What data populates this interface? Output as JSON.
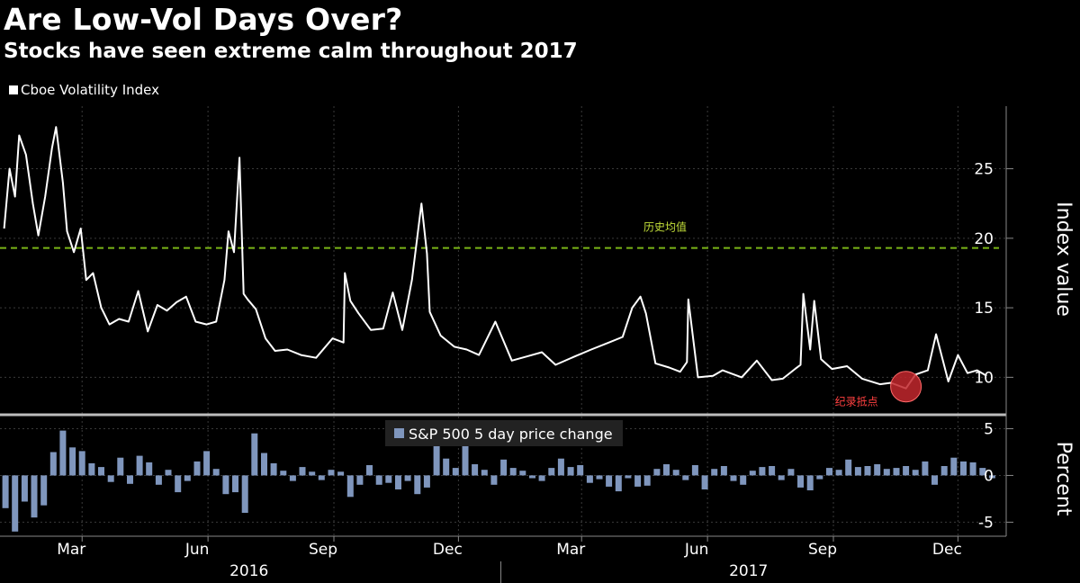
{
  "title": "Are Low-Vol Days Over?",
  "subtitle": "Stocks have seen extreme calm throughout 2017",
  "colors": {
    "background": "#000000",
    "vix_line": "#ffffff",
    "mean_line": "#7ab317",
    "bars": "#7f96bd",
    "record_low": "#e02626",
    "grid": "#444444"
  },
  "chart_data": [
    {
      "type": "line",
      "legend": "Cboe Volatility Index",
      "ylabel": "Index value",
      "ylim": [
        7.5,
        29.5
      ],
      "yticks": [
        10,
        15,
        20,
        25
      ],
      "historical_mean": 19.3,
      "annotations": {
        "mean_label": "历史均值",
        "record_low_label": "纪录抵点",
        "record_low": {
          "date": "2017-10-24",
          "value": 9.2
        }
      },
      "series": [
        {
          "name": "Cboe Volatility Index",
          "x": [
            "2016-01-04",
            "2016-01-08",
            "2016-01-12",
            "2016-01-15",
            "2016-01-20",
            "2016-01-25",
            "2016-01-29",
            "2016-02-03",
            "2016-02-08",
            "2016-02-11",
            "2016-02-16",
            "2016-02-19",
            "2016-02-24",
            "2016-02-29",
            "2016-03-04",
            "2016-03-09",
            "2016-03-15",
            "2016-03-21",
            "2016-03-28",
            "2016-04-04",
            "2016-04-11",
            "2016-04-18",
            "2016-04-25",
            "2016-05-02",
            "2016-05-09",
            "2016-05-16",
            "2016-05-23",
            "2016-05-31",
            "2016-06-07",
            "2016-06-13",
            "2016-06-16",
            "2016-06-20",
            "2016-06-24",
            "2016-06-27",
            "2016-06-30",
            "2016-07-06",
            "2016-07-13",
            "2016-07-20",
            "2016-07-29",
            "2016-08-08",
            "2016-08-19",
            "2016-08-31",
            "2016-09-08",
            "2016-09-09",
            "2016-09-13",
            "2016-09-19",
            "2016-09-28",
            "2016-10-07",
            "2016-10-14",
            "2016-10-21",
            "2016-10-28",
            "2016-11-04",
            "2016-11-08",
            "2016-11-10",
            "2016-11-18",
            "2016-11-28",
            "2016-12-07",
            "2016-12-16",
            "2016-12-28",
            "2017-01-09",
            "2017-01-20",
            "2017-01-31",
            "2017-02-10",
            "2017-02-24",
            "2017-03-08",
            "2017-03-21",
            "2017-03-31",
            "2017-04-07",
            "2017-04-13",
            "2017-04-17",
            "2017-04-24",
            "2017-05-04",
            "2017-05-12",
            "2017-05-17",
            "2017-05-18",
            "2017-05-25",
            "2017-06-05",
            "2017-06-12",
            "2017-06-26",
            "2017-07-07",
            "2017-07-18",
            "2017-07-26",
            "2017-08-04",
            "2017-08-08",
            "2017-08-10",
            "2017-08-15",
            "2017-08-18",
            "2017-08-23",
            "2017-08-31",
            "2017-09-11",
            "2017-09-22",
            "2017-10-05",
            "2017-10-13",
            "2017-10-24",
            "2017-10-31",
            "2017-11-09",
            "2017-11-15",
            "2017-11-24",
            "2017-12-01",
            "2017-12-08",
            "2017-12-15",
            "2017-12-22"
          ],
          "values": [
            20.7,
            25.0,
            23.0,
            27.4,
            26.0,
            22.5,
            20.2,
            23.0,
            26.5,
            28.0,
            24.0,
            20.5,
            19.0,
            20.7,
            17.0,
            17.5,
            15.0,
            13.8,
            14.2,
            14.0,
            16.2,
            13.3,
            15.2,
            14.8,
            15.4,
            15.8,
            14.0,
            13.8,
            14.0,
            17.0,
            20.5,
            19.0,
            25.8,
            16.0,
            15.6,
            14.9,
            12.8,
            11.9,
            12.0,
            11.6,
            11.4,
            12.8,
            12.5,
            17.5,
            15.5,
            14.6,
            13.4,
            13.5,
            16.1,
            13.4,
            17.0,
            22.5,
            18.9,
            14.7,
            13.0,
            12.2,
            12.0,
            11.6,
            14.0,
            11.2,
            11.5,
            11.8,
            10.9,
            11.5,
            12.0,
            12.5,
            12.9,
            15.0,
            15.8,
            14.6,
            11.0,
            10.7,
            10.4,
            11.1,
            15.6,
            10.0,
            10.1,
            10.5,
            10.0,
            11.2,
            9.8,
            9.9,
            10.6,
            10.9,
            16.0,
            12.0,
            15.5,
            11.3,
            10.6,
            10.8,
            9.9,
            9.5,
            9.6,
            9.2,
            10.2,
            10.5,
            13.1,
            9.7,
            11.6,
            10.3,
            10.5,
            10.1
          ]
        }
      ]
    },
    {
      "type": "bar",
      "legend": "S&P 500 5 day price change",
      "ylabel": "Percent",
      "ylim": [
        -6.5,
        6.2
      ],
      "yticks": [
        -5,
        0,
        5
      ],
      "series": [
        {
          "name": "S&P 500 5 day price change",
          "x": [
            "2016-01-05",
            "2016-01-12",
            "2016-01-19",
            "2016-01-26",
            "2016-02-02",
            "2016-02-09",
            "2016-02-16",
            "2016-02-23",
            "2016-03-01",
            "2016-03-08",
            "2016-03-15",
            "2016-03-22",
            "2016-03-29",
            "2016-04-05",
            "2016-04-12",
            "2016-04-19",
            "2016-04-26",
            "2016-05-03",
            "2016-05-10",
            "2016-05-17",
            "2016-05-24",
            "2016-05-31",
            "2016-06-07",
            "2016-06-14",
            "2016-06-21",
            "2016-06-28",
            "2016-07-05",
            "2016-07-12",
            "2016-07-19",
            "2016-07-26",
            "2016-08-02",
            "2016-08-09",
            "2016-08-16",
            "2016-08-23",
            "2016-08-30",
            "2016-09-06",
            "2016-09-13",
            "2016-09-20",
            "2016-09-27",
            "2016-10-04",
            "2016-10-11",
            "2016-10-18",
            "2016-10-25",
            "2016-11-01",
            "2016-11-08",
            "2016-11-15",
            "2016-11-22",
            "2016-11-29",
            "2016-12-06",
            "2016-12-13",
            "2016-12-20",
            "2016-12-27",
            "2017-01-03",
            "2017-01-10",
            "2017-01-17",
            "2017-01-24",
            "2017-01-31",
            "2017-02-07",
            "2017-02-14",
            "2017-02-21",
            "2017-02-28",
            "2017-03-07",
            "2017-03-14",
            "2017-03-21",
            "2017-03-28",
            "2017-04-04",
            "2017-04-11",
            "2017-04-18",
            "2017-04-25",
            "2017-05-02",
            "2017-05-09",
            "2017-05-16",
            "2017-05-23",
            "2017-05-30",
            "2017-06-06",
            "2017-06-13",
            "2017-06-20",
            "2017-06-27",
            "2017-07-04",
            "2017-07-11",
            "2017-07-18",
            "2017-07-25",
            "2017-08-01",
            "2017-08-08",
            "2017-08-15",
            "2017-08-22",
            "2017-08-29",
            "2017-09-05",
            "2017-09-12",
            "2017-09-19",
            "2017-09-26",
            "2017-10-03",
            "2017-10-10",
            "2017-10-17",
            "2017-10-24",
            "2017-10-31",
            "2017-11-07",
            "2017-11-14",
            "2017-11-21",
            "2017-11-28",
            "2017-12-05",
            "2017-12-12",
            "2017-12-19",
            "2017-12-26"
          ],
          "values": [
            -3.5,
            -6.0,
            -2.8,
            -4.5,
            -3.2,
            2.5,
            4.8,
            3.0,
            2.6,
            1.3,
            0.9,
            -0.7,
            1.9,
            -0.9,
            2.1,
            1.4,
            -1.0,
            0.6,
            -1.8,
            -0.6,
            1.5,
            2.6,
            0.7,
            -2.0,
            -1.8,
            -4.0,
            4.5,
            2.4,
            1.3,
            0.5,
            -0.6,
            0.9,
            0.4,
            -0.5,
            0.6,
            0.4,
            -2.3,
            -1.0,
            1.1,
            -1.0,
            -0.8,
            -1.5,
            -0.6,
            -2.0,
            -1.3,
            3.6,
            1.8,
            0.8,
            3.6,
            1.2,
            0.6,
            -1.0,
            1.7,
            0.8,
            0.5,
            -0.3,
            -0.6,
            0.8,
            1.8,
            0.9,
            1.1,
            -0.8,
            -0.4,
            -1.2,
            -1.7,
            -0.3,
            -1.2,
            -1.1,
            0.7,
            1.2,
            0.6,
            -0.5,
            1.1,
            -1.5,
            0.7,
            1.0,
            -0.6,
            -1.0,
            0.5,
            0.9,
            1.0,
            -0.5,
            0.7,
            -1.3,
            -1.6,
            -0.4,
            0.8,
            0.6,
            1.7,
            0.9,
            1.0,
            1.2,
            0.7,
            0.8,
            1.0,
            0.6,
            1.5,
            -1.0,
            1.0,
            1.9,
            1.5,
            1.4,
            0.8,
            -0.3
          ]
        }
      ]
    }
  ],
  "x_axis": {
    "months": [
      {
        "label": "Mar",
        "date": "2016-03-01"
      },
      {
        "label": "Jun",
        "date": "2016-06-01"
      },
      {
        "label": "Sep",
        "date": "2016-09-01"
      },
      {
        "label": "Dec",
        "date": "2016-12-01"
      },
      {
        "label": "Mar",
        "date": "2017-03-01"
      },
      {
        "label": "Jun",
        "date": "2017-06-01"
      },
      {
        "label": "Sep",
        "date": "2017-09-01"
      },
      {
        "label": "Dec",
        "date": "2017-12-01"
      }
    ],
    "years": [
      {
        "label": "2016",
        "date": "2016-07-01"
      },
      {
        "label": "2017",
        "date": "2017-07-01"
      }
    ],
    "range": [
      "2016-01-01",
      "2017-12-31"
    ]
  }
}
